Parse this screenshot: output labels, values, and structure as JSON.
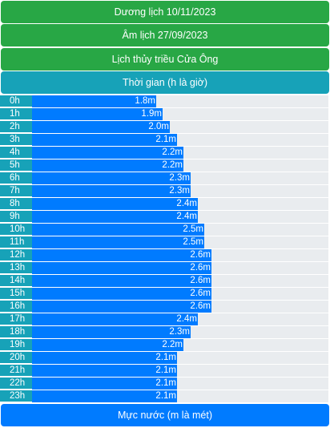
{
  "headers": {
    "solar_date": "Dương lịch 10/11/2023",
    "lunar_date": "Âm lịch 27/09/2023",
    "tide_title": "Lịch thủy triều Cửa Ông",
    "time_label": "Thời gian (h là giờ)",
    "level_label": "Mực nước (m là mét)"
  },
  "colors": {
    "green": "#28a745",
    "teal": "#17a2b8",
    "blue": "#007bff",
    "track": "#e9ecef"
  },
  "chart_data": {
    "type": "bar",
    "orientation": "horizontal",
    "categories": [
      "0h",
      "1h",
      "2h",
      "3h",
      "4h",
      "5h",
      "6h",
      "7h",
      "8h",
      "9h",
      "10h",
      "11h",
      "12h",
      "13h",
      "14h",
      "15h",
      "16h",
      "17h",
      "18h",
      "19h",
      "20h",
      "21h",
      "22h",
      "23h"
    ],
    "values": [
      1.8,
      1.9,
      2.0,
      2.1,
      2.2,
      2.2,
      2.3,
      2.3,
      2.4,
      2.4,
      2.5,
      2.5,
      2.6,
      2.6,
      2.6,
      2.6,
      2.6,
      2.4,
      2.3,
      2.2,
      2.1,
      2.1,
      2.1,
      2.1
    ],
    "value_suffix": "m",
    "xlim": [
      0,
      4.3
    ]
  }
}
